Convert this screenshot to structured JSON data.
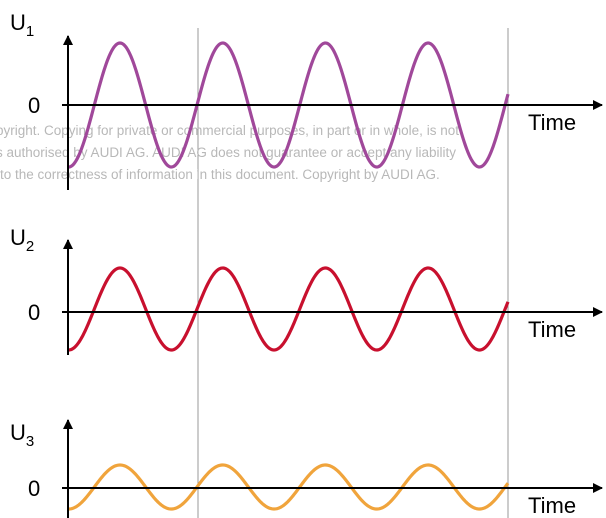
{
  "panels": [
    {
      "label": "U",
      "subscript": "1",
      "zero": "0",
      "axis": "Time"
    },
    {
      "label": "U",
      "subscript": "2",
      "zero": "0",
      "axis": "Time"
    },
    {
      "label": "U",
      "subscript": "3",
      "zero": "0",
      "axis": "Time"
    }
  ],
  "watermark": {
    "lines": [
      "pyright. Copying for private or commercial purposes, in part or in whole, is not",
      "s authorised by AUDI AG. AUDI AG does not guarantee or accept any liability",
      "to the correctness of information in this document. Copyright by AUDI AG."
    ]
  }
}
